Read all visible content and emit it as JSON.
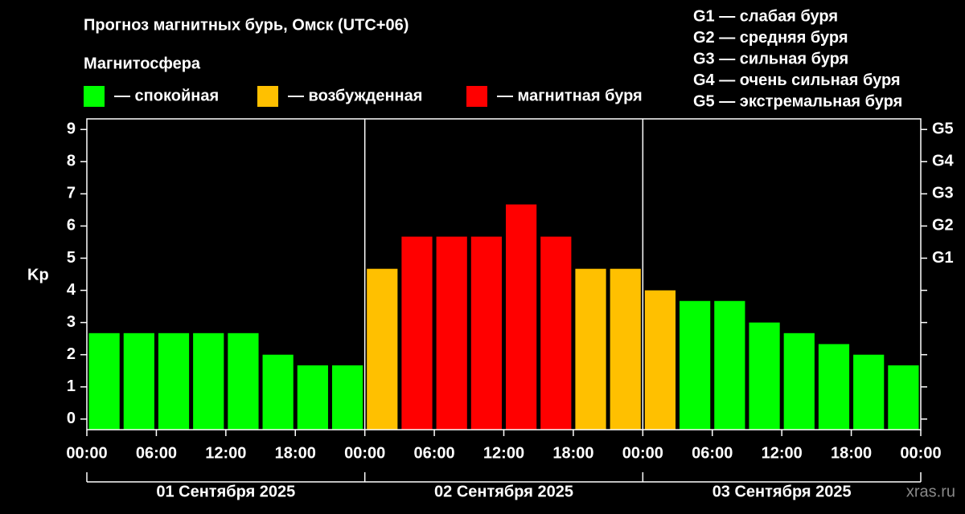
{
  "chart_data": {
    "type": "bar",
    "title": "Прогноз магнитных бурь, Омск (UTC+06)",
    "subtitle": "Магнитосфера",
    "ylabel": "Kp",
    "watermark": "xras.ru",
    "legend": [
      {
        "color": "#00ff00",
        "label": "— спокойная"
      },
      {
        "color": "#ffc000",
        "label": "— возбужденная"
      },
      {
        "color": "#ff0000",
        "label": "— магнитная буря"
      }
    ],
    "storm_scale": [
      "G1 — слабая буря",
      "G2 — средняя буря",
      "G3 — сильная буря",
      "G4 — очень сильная буря",
      "G5 — экстремальная буря"
    ],
    "values": [
      2.67,
      2.67,
      2.67,
      2.67,
      2.67,
      2.0,
      1.67,
      1.67,
      4.67,
      5.67,
      5.67,
      5.67,
      6.67,
      5.67,
      4.67,
      4.67,
      4.0,
      3.67,
      3.67,
      3.0,
      2.67,
      2.33,
      2.0,
      1.67
    ],
    "colors": [
      "#00ff00",
      "#00ff00",
      "#00ff00",
      "#00ff00",
      "#00ff00",
      "#00ff00",
      "#00ff00",
      "#00ff00",
      "#ffc000",
      "#ff0000",
      "#ff0000",
      "#ff0000",
      "#ff0000",
      "#ff0000",
      "#ffc000",
      "#ffc000",
      "#ffc000",
      "#00ff00",
      "#00ff00",
      "#00ff00",
      "#00ff00",
      "#00ff00",
      "#00ff00",
      "#00ff00"
    ],
    "ylim": [
      -0.33,
      9.33
    ],
    "yticks": [
      0,
      1,
      2,
      3,
      4,
      5,
      6,
      7,
      8,
      9
    ],
    "y2ticks": [
      {
        "value": 5,
        "label": "G1"
      },
      {
        "value": 6,
        "label": "G2"
      },
      {
        "value": 7,
        "label": "G3"
      },
      {
        "value": 8,
        "label": "G4"
      },
      {
        "value": 9,
        "label": "G5"
      }
    ],
    "xlim": [
      0,
      72
    ],
    "xticks": [
      {
        "value": 0,
        "label": "00:00"
      },
      {
        "value": 6,
        "label": "06:00"
      },
      {
        "value": 12,
        "label": "12:00"
      },
      {
        "value": 18,
        "label": "18:00"
      },
      {
        "value": 24,
        "label": "00:00"
      },
      {
        "value": 30,
        "label": "06:00"
      },
      {
        "value": 36,
        "label": "12:00"
      },
      {
        "value": 42,
        "label": "18:00"
      },
      {
        "value": 48,
        "label": "00:00"
      },
      {
        "value": 54,
        "label": "06:00"
      },
      {
        "value": 60,
        "label": "12:00"
      },
      {
        "value": 66,
        "label": "18:00"
      },
      {
        "value": 72,
        "label": "00:00"
      }
    ],
    "days": [
      "01 Сентября 2025",
      "02 Сентября 2025",
      "03 Сентября 2025"
    ]
  }
}
